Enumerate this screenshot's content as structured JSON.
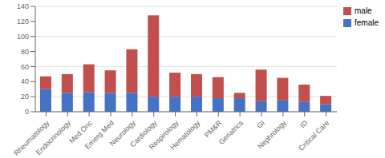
{
  "chart_data": {
    "type": "bar",
    "stacked": true,
    "categories": [
      "Rheumatology",
      "Endocrinology",
      "Med Onc",
      "Emerg Med",
      "Neurology",
      "Cardiology",
      "Respirology",
      "Hematology",
      "PM&R",
      "Geriatrics",
      "GI",
      "Nephrology",
      "ID",
      "Critical Care"
    ],
    "series": [
      {
        "name": "female",
        "color": "#4472c4",
        "values": [
          30,
          25,
          26,
          25,
          25,
          20,
          20,
          20,
          18,
          18,
          14,
          15,
          13,
          10
        ]
      },
      {
        "name": "male",
        "color": "#c0504d",
        "values": [
          17,
          25,
          37,
          30,
          58,
          108,
          32,
          30,
          28,
          7,
          42,
          30,
          23,
          11
        ]
      }
    ],
    "ylim": [
      0,
      140
    ],
    "yticks": [
      0,
      20,
      40,
      60,
      80,
      100,
      120,
      140
    ],
    "grid": true,
    "legend": "upper right"
  }
}
